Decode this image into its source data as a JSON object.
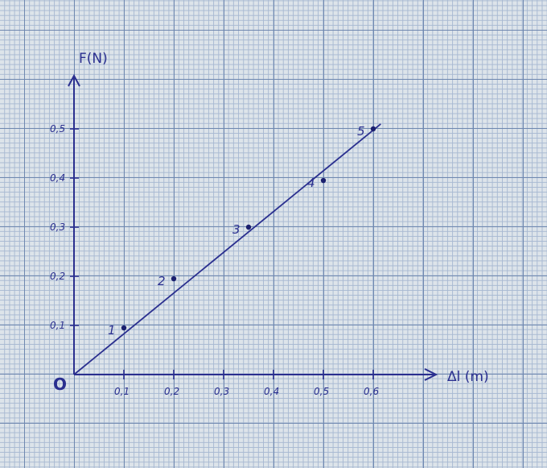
{
  "chart_data": {
    "type": "scatter",
    "title": "",
    "xlabel": "Δl (m)",
    "ylabel": "F(N)",
    "origin_label": "O",
    "x_ticks": [
      "0,1",
      "0,2",
      "0,3",
      "0,4",
      "0,5",
      "0,6"
    ],
    "y_ticks": [
      "0,1",
      "0,2",
      "0,3",
      "0,4",
      "0,5"
    ],
    "xlim": [
      0,
      0.7
    ],
    "ylim": [
      0,
      0.6
    ],
    "points": [
      {
        "label": "1",
        "x": 0.1,
        "y": 0.095
      },
      {
        "label": "2",
        "x": 0.2,
        "y": 0.195
      },
      {
        "label": "3",
        "x": 0.35,
        "y": 0.3
      },
      {
        "label": "4",
        "x": 0.5,
        "y": 0.395
      },
      {
        "label": "5",
        "x": 0.6,
        "y": 0.5
      }
    ],
    "fit_line": {
      "x": [
        0,
        0.615
      ],
      "y": [
        0,
        0.51
      ]
    },
    "grid": true,
    "colors": {
      "ink": "#2a2f8f",
      "grid_major": "#6f88b0",
      "grid_minor": "#a8b9d2"
    }
  }
}
